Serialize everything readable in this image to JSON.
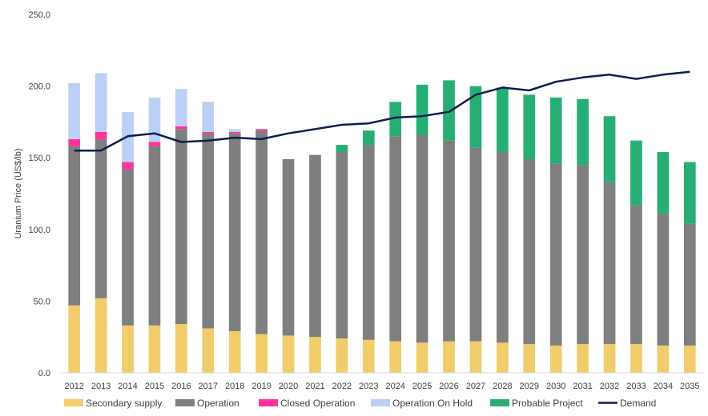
{
  "chart_data": {
    "type": "bar",
    "stacked": true,
    "title": "",
    "xlabel": "",
    "ylabel": "Uranium Price (US$/lb)",
    "ylim": [
      0,
      250
    ],
    "yticks": [
      0,
      50,
      100,
      150,
      200,
      250
    ],
    "ytick_labels": [
      "0.0",
      "50.0",
      "100.0",
      "150.0",
      "200.0",
      "250.0"
    ],
    "grid": false,
    "legend_position": "bottom",
    "categories": [
      "2012",
      "2013",
      "2014",
      "2015",
      "2016",
      "2017",
      "2018",
      "2019",
      "2020",
      "2021",
      "2022",
      "2023",
      "2024",
      "2025",
      "2026",
      "2027",
      "2028",
      "2029",
      "2030",
      "2031",
      "2032",
      "2033",
      "2034",
      "2035"
    ],
    "series": [
      {
        "name": "Secondary supply",
        "color": "#f0cd6a",
        "values": [
          47,
          52,
          33,
          33,
          34,
          31,
          29,
          27,
          26,
          25,
          24,
          23,
          22,
          21,
          22,
          22,
          21,
          20,
          19,
          20,
          20,
          20,
          19,
          19
        ]
      },
      {
        "name": "Operation",
        "color": "#7f7f7f",
        "values": [
          111,
          111,
          109,
          125,
          136,
          136,
          138,
          142,
          123,
          127,
          130,
          136,
          143,
          145,
          140,
          135,
          133,
          129,
          127,
          125,
          113,
          97,
          92,
          85
        ]
      },
      {
        "name": "Closed Operation",
        "color": "#ff3399",
        "values": [
          5,
          5,
          5,
          3,
          2,
          1,
          1,
          1,
          0,
          0,
          0,
          0,
          0,
          0,
          0,
          0,
          0,
          0,
          0,
          0,
          0,
          0,
          0,
          0
        ]
      },
      {
        "name": "Operation On Hold",
        "color": "#bcd0f6",
        "values": [
          39,
          41,
          35,
          31,
          26,
          21,
          2,
          0,
          0,
          0,
          0,
          0,
          0,
          0,
          0,
          0,
          0,
          0,
          0,
          0,
          0,
          0,
          0,
          0
        ]
      },
      {
        "name": "Probable Project",
        "color": "#27ae74",
        "values": [
          0,
          0,
          0,
          0,
          0,
          0,
          0,
          0,
          0,
          0,
          5,
          10,
          24,
          35,
          42,
          43,
          45,
          45,
          46,
          46,
          46,
          45,
          43,
          43
        ]
      }
    ],
    "line_series": {
      "name": "Demand",
      "color": "#0e1d4e",
      "values": [
        155,
        155,
        165,
        167,
        161,
        162,
        164,
        163,
        167,
        170,
        173,
        174,
        178,
        179,
        182,
        194,
        199,
        197,
        203,
        206,
        208,
        205,
        208,
        210
      ]
    }
  }
}
